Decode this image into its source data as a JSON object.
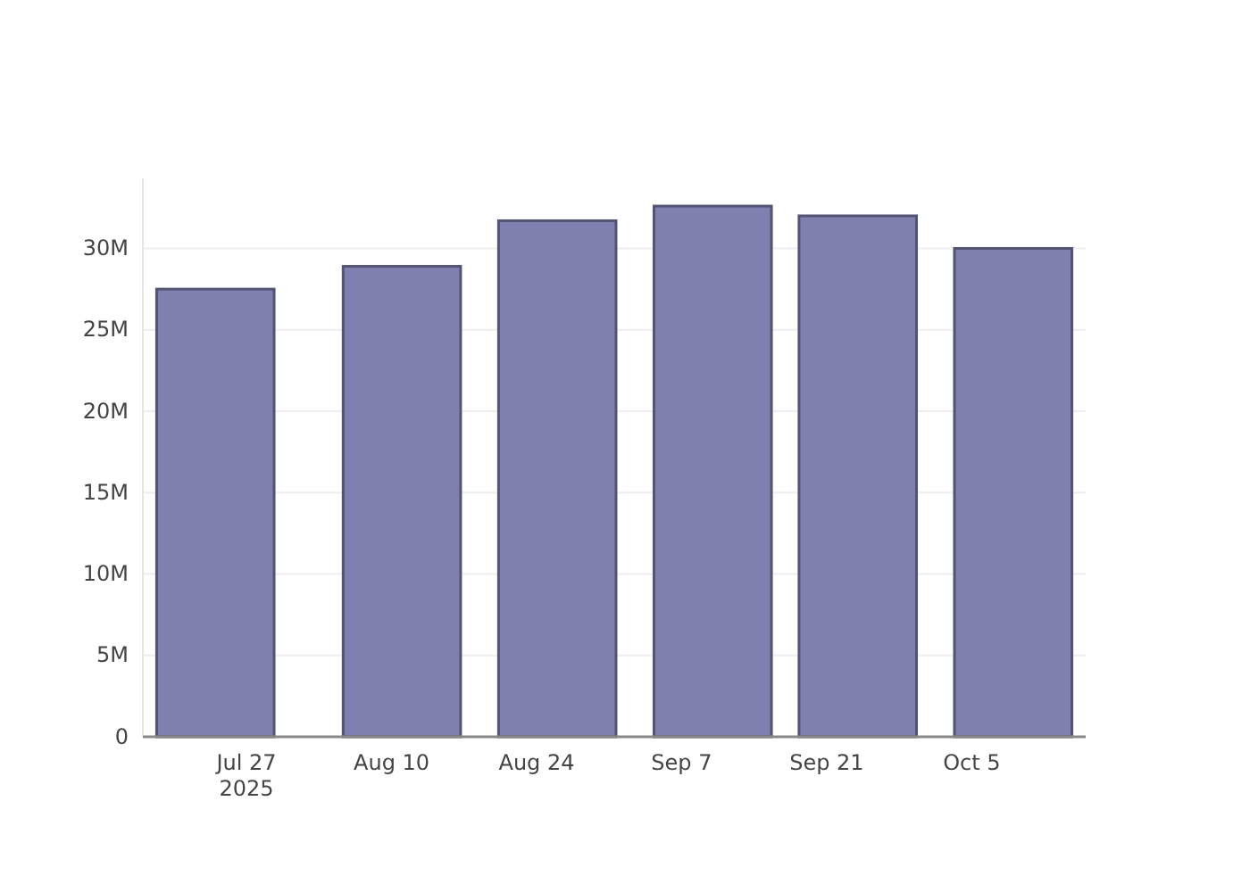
{
  "chart_data": {
    "type": "bar",
    "x": [
      "2025-07-24",
      "2025-08-11",
      "2025-08-26",
      "2025-09-10",
      "2025-09-24",
      "2025-10-09"
    ],
    "values": [
      27500000,
      28900000,
      31700000,
      32600000,
      32000000,
      30000000
    ],
    "color": "#7f7fb0",
    "xlim": [
      "2025-07-17",
      "2025-10-16"
    ],
    "xticks": [
      {
        "value": "2025-07-27",
        "label": "Jul 27\n2025"
      },
      {
        "value": "2025-08-10",
        "label": "Aug 10"
      },
      {
        "value": "2025-08-24",
        "label": "Aug 24"
      },
      {
        "value": "2025-09-07",
        "label": "Sep 7"
      },
      {
        "value": "2025-09-21",
        "label": "Sep 21"
      },
      {
        "value": "2025-10-05",
        "label": "Oct 5"
      }
    ],
    "ylim": [
      0,
      34300000
    ],
    "yticks": [
      {
        "value": 0,
        "label": "0"
      },
      {
        "value": 5000000,
        "label": "5M"
      },
      {
        "value": 10000000,
        "label": "10M"
      },
      {
        "value": 15000000,
        "label": "15M"
      },
      {
        "value": 20000000,
        "label": "20M"
      },
      {
        "value": 25000000,
        "label": "25M"
      },
      {
        "value": 30000000,
        "label": "30M"
      }
    ],
    "grid": "y"
  }
}
